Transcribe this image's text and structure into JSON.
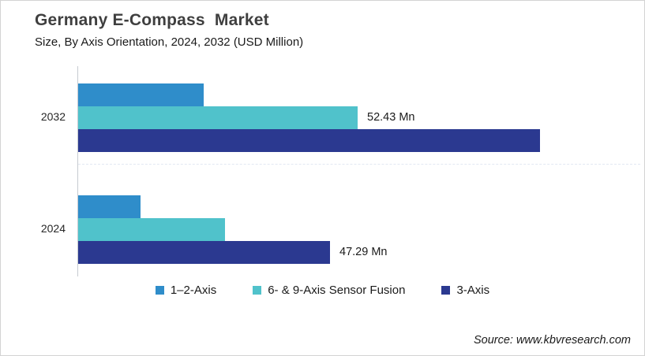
{
  "header": {
    "title": "Germany E-Compass  Market",
    "subtitle": "Size, By Axis Orientation, 2024, 2032 (USD Million)"
  },
  "source": "Source: www.kbvresearch.com",
  "chart_data": {
    "type": "bar",
    "orientation": "horizontal",
    "title": "Germany E-Compass Market",
    "subtitle": "Size, By Axis Orientation, 2024, 2032 (USD Million)",
    "unit": "USD Million",
    "categories": [
      "2032",
      "2024"
    ],
    "series": [
      {
        "name": "1–2-Axis",
        "color": "#2f8dca",
        "values": [
          23.6,
          11.7
        ],
        "labels": [
          null,
          null
        ]
      },
      {
        "name": "6- & 9-Axis Sensor Fusion",
        "color": "#50c2cb",
        "values": [
          52.43,
          27.6
        ],
        "labels": [
          "52.43 Mn",
          null
        ]
      },
      {
        "name": "3-Axis",
        "color": "#2b3990",
        "values": [
          86.7,
          47.29
        ],
        "labels": [
          null,
          "47.29 Mn"
        ]
      }
    ],
    "xlim": [
      0,
      100
    ],
    "grid": false,
    "legend_position": "bottom"
  }
}
